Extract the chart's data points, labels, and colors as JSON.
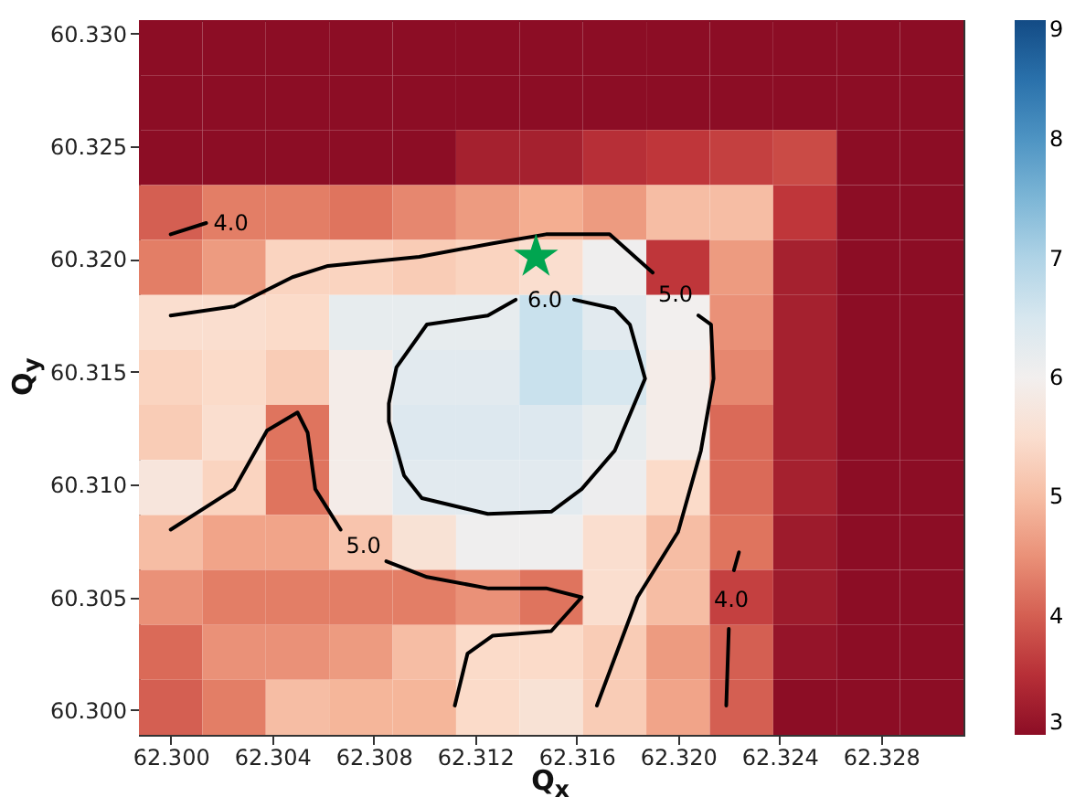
{
  "chart_data": {
    "type": "heatmap",
    "xlabel": "Q$_{x}$",
    "ylabel": "Q$_{y}$",
    "cells": [
      [
        3,
        3,
        3,
        3,
        3,
        3,
        3,
        3,
        3,
        3,
        3,
        3,
        3
      ],
      [
        3,
        3,
        3,
        3,
        3,
        3,
        3,
        3,
        3,
        3,
        3,
        3,
        3
      ],
      [
        3,
        3,
        3,
        3,
        3,
        3.3,
        3.3,
        3.5,
        3.6,
        3.7,
        3.8,
        3,
        3
      ],
      [
        4,
        4.3,
        4.3,
        4.2,
        4.4,
        4.6,
        4.8,
        4.6,
        5,
        5,
        3.6,
        3,
        3
      ],
      [
        4.3,
        4.6,
        5.3,
        5.3,
        5.2,
        5.3,
        5.5,
        6.05,
        3.6,
        4.6,
        3.3,
        3,
        3
      ],
      [
        5.5,
        5.5,
        5.4,
        6.2,
        6.2,
        6.2,
        6.7,
        6.3,
        6,
        4.5,
        3.3,
        3,
        3
      ],
      [
        5.3,
        5.4,
        5.2,
        5.9,
        6.3,
        6.3,
        6.7,
        6.5,
        5.9,
        4.4,
        3.3,
        3,
        3
      ],
      [
        5.2,
        5.5,
        4.2,
        5.9,
        6.4,
        6.4,
        6.4,
        6.2,
        5.9,
        4.1,
        3.3,
        3,
        3
      ],
      [
        5.7,
        5.3,
        4.2,
        5.9,
        6.3,
        6.3,
        6.3,
        6.1,
        5.4,
        4.1,
        3.3,
        3,
        3
      ],
      [
        5,
        4.7,
        4.7,
        5.1,
        5.6,
        6.05,
        6.05,
        5.5,
        5,
        4.2,
        3.2,
        3,
        3
      ],
      [
        4.5,
        4.3,
        4.3,
        4.3,
        4.3,
        4.5,
        4.2,
        5.5,
        5,
        3.7,
        3.2,
        3,
        3
      ],
      [
        4.1,
        4.5,
        4.5,
        4.6,
        5,
        5.4,
        5.4,
        5.2,
        4.6,
        4,
        3.1,
        3,
        3
      ],
      [
        4,
        4.3,
        5,
        4.9,
        4.9,
        5.4,
        5.6,
        5.2,
        4.7,
        4,
        3,
        3,
        3
      ]
    ],
    "xlim": [
      62.29875,
      62.33125
    ],
    "ylim": [
      60.2989,
      60.3306
    ],
    "xticks": [
      {
        "value": 62.3,
        "label": "62.300"
      },
      62.304,
      62.308,
      62.312,
      62.316,
      {
        "value": 62.32,
        "label": "62.320"
      },
      62.324,
      62.328
    ],
    "yticks": [
      {
        "value": 60.3,
        "label": "60.300"
      },
      60.305,
      {
        "value": 60.31,
        "label": "60.310"
      },
      60.315,
      {
        "value": 60.32,
        "label": "60.320"
      },
      60.325,
      {
        "value": 60.33,
        "label": "60.330"
      }
    ],
    "clim": [
      3,
      9
    ],
    "cticks": [
      3,
      4,
      5,
      6,
      7,
      8,
      9
    ],
    "series": [
      {
        "type": "line",
        "color": "#000000",
        "x": [
          62.3,
          62.3014
        ],
        "values": [
          60.3211,
          60.3216
        ]
      },
      {
        "type": "line",
        "color": "#000000",
        "x": [
          62.3,
          62.3025,
          62.3048,
          62.3062,
          62.3098,
          62.3127,
          62.3148,
          62.3173,
          62.319
        ],
        "values": [
          60.3175,
          60.3179,
          60.3192,
          60.3197,
          60.3201,
          60.3207,
          60.3211,
          60.3211,
          60.3194
        ]
      },
      {
        "type": "line",
        "color": "#000000",
        "x": [
          62.3208,
          62.3213,
          62.3214,
          62.3209,
          62.32,
          62.3184,
          62.3168
        ],
        "values": [
          60.3175,
          60.3171,
          60.3147,
          60.3115,
          60.3079,
          60.305,
          60.3002
        ]
      },
      {
        "type": "line",
        "color": "#000000",
        "x": [
          62.3159,
          62.3175,
          62.3181,
          62.3187,
          62.3175,
          62.3162,
          62.315,
          62.3125,
          62.3099,
          62.3092,
          62.3086,
          62.3086,
          62.3089,
          62.3101,
          62.3125,
          62.3136
        ],
        "values": [
          60.3182,
          60.3178,
          60.3171,
          60.3147,
          60.3115,
          60.3098,
          60.3088,
          60.3087,
          60.3094,
          60.3104,
          60.3128,
          60.3136,
          60.3152,
          60.3171,
          60.3175,
          60.3182
        ]
      },
      {
        "type": "line",
        "color": "#000000",
        "x": [
          62.3,
          62.3025,
          62.3038,
          62.305,
          62.3054,
          62.3057,
          62.3067
        ],
        "values": [
          60.308,
          60.3098,
          60.3124,
          60.3132,
          60.3123,
          60.3098,
          60.308
        ]
      },
      {
        "type": "line",
        "color": "#000000",
        "x": [
          62.3085,
          62.3101,
          62.3125,
          62.3148,
          62.3162,
          62.315,
          62.3127,
          62.3117,
          62.3112
        ],
        "values": [
          60.3066,
          60.3059,
          60.3054,
          60.3054,
          60.305,
          60.3035,
          60.3033,
          60.3025,
          60.3002
        ]
      },
      {
        "type": "line",
        "color": "#000000",
        "x": [
          62.3224,
          62.3222
        ],
        "values": [
          60.307,
          60.3062
        ]
      },
      {
        "type": "line",
        "color": "#000000",
        "x": [
          62.322,
          62.3219
        ],
        "values": [
          60.3036,
          60.3002
        ]
      },
      {
        "type": "scatter",
        "marker": "star",
        "color": "#00a550",
        "x": [
          62.3144
        ],
        "values": [
          60.3201
        ]
      }
    ],
    "annotations": [
      {
        "text": "4.0",
        "x": 62.3014,
        "y": 60.3216
      },
      {
        "text": "6.0",
        "x": 62.3136,
        "y": 60.3182
      },
      {
        "text": "5.0",
        "x": 62.319,
        "y": 60.3194
      },
      {
        "text": "5.0",
        "x": 62.3067,
        "y": 60.308
      },
      {
        "text": "4.0",
        "x": 62.3222,
        "y": 60.3062
      }
    ]
  }
}
